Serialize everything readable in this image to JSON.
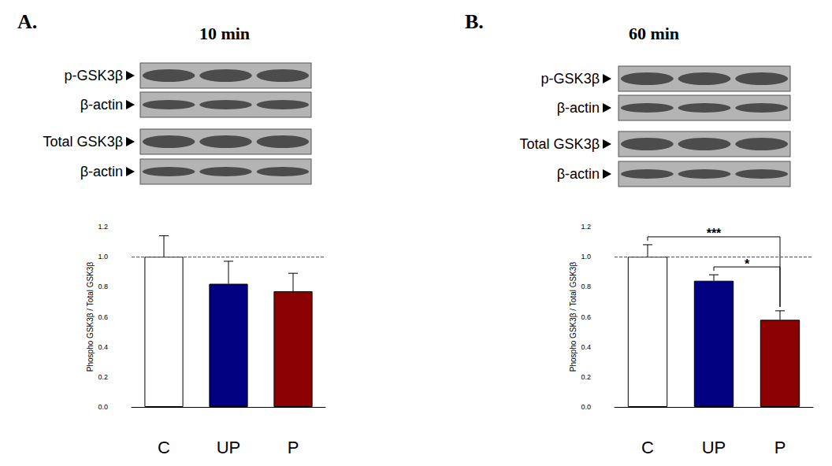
{
  "chart_data": [
    {
      "type": "bar",
      "panel_label": "A.",
      "title": "10 min",
      "blot_labels": [
        "p-GSK3β",
        "β-actin",
        "Total GSK3β",
        "β-actin"
      ],
      "y_label": "Phospho GSK3β / Total GSK3β",
      "categories": [
        "C",
        "UP",
        "P"
      ],
      "values": [
        1.0,
        0.82,
        0.77
      ],
      "errors": [
        0.14,
        0.15,
        0.12
      ],
      "colors": [
        "#ffffff",
        "#000080",
        "#8b0000"
      ],
      "reference_line": 1.0,
      "ylim": [
        0,
        1.2
      ],
      "yticks": [
        {
          "value": 0,
          "label": "0.0"
        },
        0.2,
        0.4,
        0.6,
        0.8,
        {
          "value": 1,
          "label": "1.0"
        },
        1.2
      ],
      "annotations": []
    },
    {
      "type": "bar",
      "panel_label": "B.",
      "title": "60 min",
      "blot_labels": [
        "p-GSK3β",
        "β-actin",
        "Total GSK3β",
        "β-actin"
      ],
      "y_label": "Phospho GSK3β / Total GSK3β",
      "categories": [
        "C",
        "UP",
        "P"
      ],
      "values": [
        1.0,
        0.84,
        0.58
      ],
      "errors": [
        0.08,
        0.04,
        0.06
      ],
      "colors": [
        "#ffffff",
        "#000080",
        "#8b0000"
      ],
      "reference_line": 1.0,
      "ylim": [
        0,
        1.2
      ],
      "yticks": [
        {
          "value": 0,
          "label": "0.0"
        },
        0.2,
        0.4,
        0.6,
        0.8,
        {
          "value": 1,
          "label": "1.0"
        },
        1.2
      ],
      "annotations": [
        {
          "text": "***",
          "from": "C",
          "to": "P"
        },
        {
          "text": "*",
          "from": "UP",
          "to": "P"
        }
      ]
    }
  ]
}
